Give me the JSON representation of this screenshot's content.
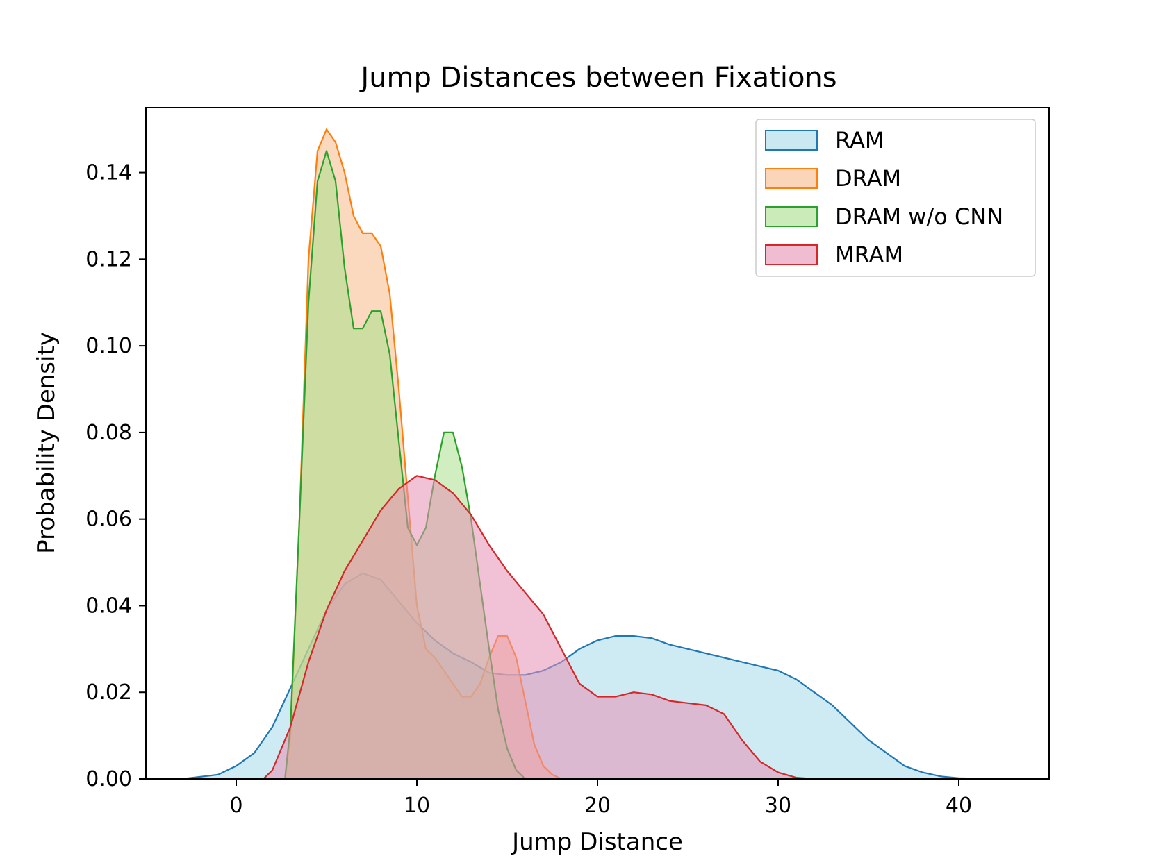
{
  "chart_data": {
    "type": "area",
    "title": "Jump Distances between Fixations",
    "xlabel": "Jump Distance",
    "ylabel": "Probability Density",
    "xlim": [
      -5,
      45
    ],
    "ylim": [
      0,
      0.155
    ],
    "xticks": [
      0,
      10,
      20,
      30,
      40
    ],
    "yticks": [
      0.0,
      0.02,
      0.04,
      0.06,
      0.08,
      0.1,
      0.12,
      0.14
    ],
    "ytick_labels": [
      "0.00",
      "0.02",
      "0.04",
      "0.06",
      "0.08",
      "0.10",
      "0.12",
      "0.14"
    ],
    "grid": false,
    "legend_position": "top-right",
    "series": [
      {
        "name": "RAM",
        "color": "#1f77b4",
        "fill": "#a6d9ea",
        "points": [
          [
            -3,
            0
          ],
          [
            -1,
            0.001
          ],
          [
            0,
            0.003
          ],
          [
            1,
            0.006
          ],
          [
            2,
            0.012
          ],
          [
            3,
            0.021
          ],
          [
            4,
            0.03
          ],
          [
            5,
            0.039
          ],
          [
            6,
            0.045
          ],
          [
            7,
            0.0475
          ],
          [
            8,
            0.046
          ],
          [
            9,
            0.041
          ],
          [
            10,
            0.036
          ],
          [
            11,
            0.032
          ],
          [
            12,
            0.029
          ],
          [
            13,
            0.027
          ],
          [
            14,
            0.0245
          ],
          [
            15,
            0.024
          ],
          [
            16,
            0.024
          ],
          [
            17,
            0.025
          ],
          [
            18,
            0.027
          ],
          [
            19,
            0.03
          ],
          [
            20,
            0.032
          ],
          [
            21,
            0.033
          ],
          [
            22,
            0.033
          ],
          [
            23,
            0.0325
          ],
          [
            24,
            0.031
          ],
          [
            25,
            0.03
          ],
          [
            26,
            0.029
          ],
          [
            27,
            0.028
          ],
          [
            28,
            0.027
          ],
          [
            29,
            0.026
          ],
          [
            30,
            0.025
          ],
          [
            31,
            0.023
          ],
          [
            32,
            0.02
          ],
          [
            33,
            0.017
          ],
          [
            34,
            0.013
          ],
          [
            35,
            0.009
          ],
          [
            36,
            0.006
          ],
          [
            37,
            0.003
          ],
          [
            38,
            0.0015
          ],
          [
            39,
            0.0006
          ],
          [
            40,
            0.0002
          ],
          [
            42,
            0
          ]
        ]
      },
      {
        "name": "DRAM",
        "color": "#ff7f0e",
        "fill": "#f8b98a",
        "points": [
          [
            2.7,
            0
          ],
          [
            3.0,
            0.01
          ],
          [
            3.5,
            0.06
          ],
          [
            4.0,
            0.12
          ],
          [
            4.5,
            0.145
          ],
          [
            5.0,
            0.15
          ],
          [
            5.5,
            0.147
          ],
          [
            6.0,
            0.14
          ],
          [
            6.5,
            0.13
          ],
          [
            7.0,
            0.126
          ],
          [
            7.5,
            0.126
          ],
          [
            8.0,
            0.123
          ],
          [
            8.5,
            0.112
          ],
          [
            9.0,
            0.09
          ],
          [
            9.5,
            0.065
          ],
          [
            10.0,
            0.04
          ],
          [
            10.5,
            0.03
          ],
          [
            11.0,
            0.028
          ],
          [
            11.5,
            0.025
          ],
          [
            12.0,
            0.022
          ],
          [
            12.5,
            0.019
          ],
          [
            13.0,
            0.019
          ],
          [
            13.5,
            0.022
          ],
          [
            14.0,
            0.028
          ],
          [
            14.5,
            0.033
          ],
          [
            15.0,
            0.033
          ],
          [
            15.5,
            0.028
          ],
          [
            16.0,
            0.018
          ],
          [
            16.5,
            0.008
          ],
          [
            17.0,
            0.003
          ],
          [
            17.5,
            0.001
          ],
          [
            18,
            0
          ]
        ]
      },
      {
        "name": "DRAM w/o CNN",
        "color": "#2ca02c",
        "fill": "#a9e08a",
        "points": [
          [
            2.7,
            0
          ],
          [
            3.0,
            0.012
          ],
          [
            3.5,
            0.06
          ],
          [
            4.0,
            0.11
          ],
          [
            4.5,
            0.138
          ],
          [
            5.0,
            0.145
          ],
          [
            5.5,
            0.138
          ],
          [
            6.0,
            0.118
          ],
          [
            6.5,
            0.104
          ],
          [
            7.0,
            0.104
          ],
          [
            7.5,
            0.108
          ],
          [
            8.0,
            0.108
          ],
          [
            8.5,
            0.098
          ],
          [
            9.0,
            0.078
          ],
          [
            9.5,
            0.058
          ],
          [
            10.0,
            0.054
          ],
          [
            10.5,
            0.058
          ],
          [
            11.0,
            0.07
          ],
          [
            11.5,
            0.08
          ],
          [
            12.0,
            0.08
          ],
          [
            12.5,
            0.072
          ],
          [
            13.0,
            0.06
          ],
          [
            13.5,
            0.045
          ],
          [
            14.0,
            0.03
          ],
          [
            14.5,
            0.016
          ],
          [
            15.0,
            0.007
          ],
          [
            15.5,
            0.002
          ],
          [
            16,
            0
          ]
        ]
      },
      {
        "name": "MRAM",
        "color": "#d62728",
        "fill": "#e58fb4",
        "points": [
          [
            1.5,
            0
          ],
          [
            2,
            0.002
          ],
          [
            3,
            0.012
          ],
          [
            4,
            0.027
          ],
          [
            5,
            0.039
          ],
          [
            6,
            0.048
          ],
          [
            7,
            0.055
          ],
          [
            8,
            0.062
          ],
          [
            9,
            0.067
          ],
          [
            10,
            0.07
          ],
          [
            11,
            0.069
          ],
          [
            12,
            0.066
          ],
          [
            13,
            0.061
          ],
          [
            14,
            0.054
          ],
          [
            15,
            0.048
          ],
          [
            16,
            0.043
          ],
          [
            17,
            0.038
          ],
          [
            18,
            0.03
          ],
          [
            19,
            0.022
          ],
          [
            20,
            0.019
          ],
          [
            21,
            0.019
          ],
          [
            22,
            0.02
          ],
          [
            23,
            0.0195
          ],
          [
            24,
            0.018
          ],
          [
            25,
            0.0175
          ],
          [
            26,
            0.017
          ],
          [
            27,
            0.015
          ],
          [
            28,
            0.009
          ],
          [
            29,
            0.004
          ],
          [
            30,
            0.0015
          ],
          [
            31,
            0.0003
          ],
          [
            32,
            0
          ]
        ]
      }
    ]
  }
}
